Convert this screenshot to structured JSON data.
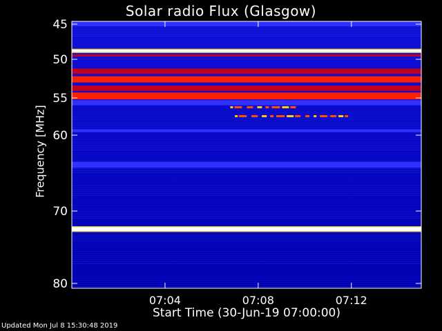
{
  "chart_data": {
    "type": "heatmap",
    "title": "Solar radio Flux (Glasgow)",
    "xlabel": "Start Time (30-Jun-19 07:00:00)",
    "ylabel": "Frequency [MHz]",
    "x_tick_labels": [
      "07:04",
      "07:08",
      "07:12"
    ],
    "x_tick_minutes": [
      4,
      8,
      12
    ],
    "xlim_minutes": [
      0,
      15
    ],
    "y_tick_labels": [
      "45",
      "50",
      "55",
      "60",
      "70",
      "80"
    ],
    "y_tick_values": [
      45,
      50,
      55,
      60,
      70,
      80
    ],
    "ylim_mhz": [
      44.6,
      80.2
    ],
    "y_scale": "reciprocal-like",
    "colormap": [
      "#0000c8",
      "#3030ff",
      "#c00020",
      "#ff2000",
      "#ffd000",
      "#ffffff"
    ],
    "intensity_bands_mhz": [
      {
        "from": 44.6,
        "to": 45.3,
        "level": 0.35
      },
      {
        "from": 48.6,
        "to": 49.0,
        "level": 1.0
      },
      {
        "from": 49.3,
        "to": 49.6,
        "level": 0.6
      },
      {
        "from": 51.2,
        "to": 51.9,
        "level": 0.62
      },
      {
        "from": 52.2,
        "to": 53.0,
        "level": 0.7
      },
      {
        "from": 53.4,
        "to": 54.1,
        "level": 0.62
      },
      {
        "from": 54.3,
        "to": 55.2,
        "level": 0.72
      },
      {
        "from": 55.3,
        "to": 56.0,
        "level": 0.3
      },
      {
        "from": 59.2,
        "to": 59.6,
        "level": 0.28
      },
      {
        "from": 63.5,
        "to": 64.3,
        "level": 0.3
      },
      {
        "from": 72.2,
        "to": 72.8,
        "level": 0.95
      }
    ],
    "burst_features": [
      {
        "start_min": 6.8,
        "end_min": 9.6,
        "freq_mhz": 56.3,
        "level": 0.85
      },
      {
        "start_min": 7.0,
        "end_min": 11.8,
        "freq_mhz": 57.5,
        "level": 0.75
      }
    ]
  },
  "footer": "Updated Mon Jul  8 15:30:48 2019"
}
